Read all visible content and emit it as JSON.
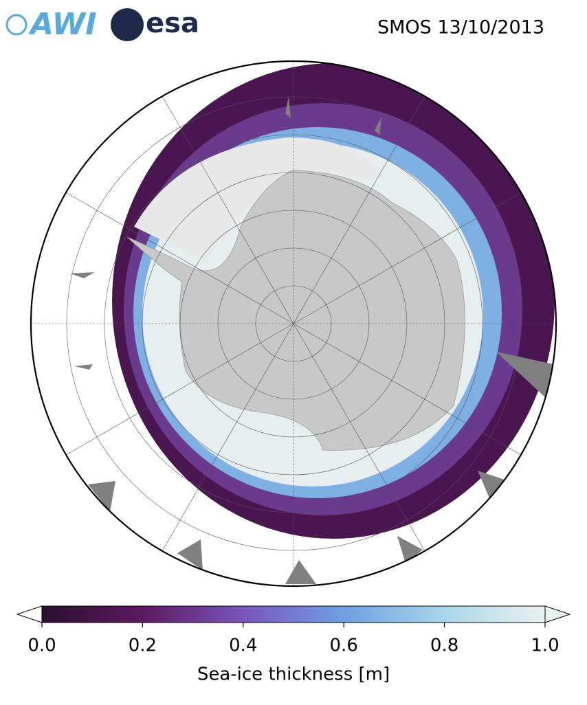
{
  "header": {
    "logos": [
      "AWI",
      "esa"
    ],
    "title": "SMOS 13/10/2013"
  },
  "colorbar": {
    "lim": [
      0,
      1
    ],
    "ticks": [
      {
        "value": 0,
        "label": "0.0"
      },
      0.2,
      0.4,
      0.6,
      0.8,
      {
        "value": 1,
        "label": "1.0"
      }
    ],
    "colors": [
      "#2b0f2f",
      "#5b1a5f",
      "#7a55bb",
      "#6f9fe2",
      "#a9d6ea",
      "#e9f0f0"
    ],
    "label": "Sea-ice thickness [m]"
  }
}
